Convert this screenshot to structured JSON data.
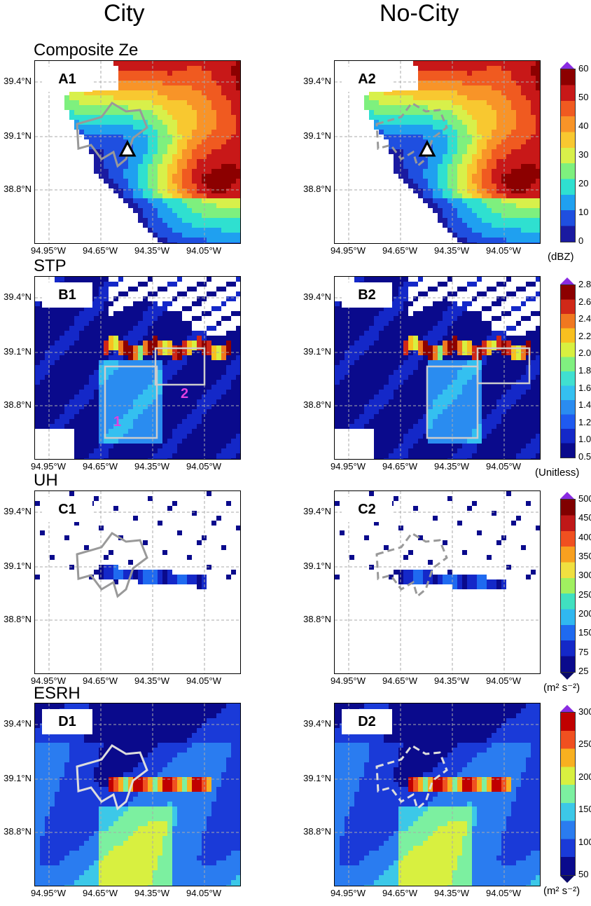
{
  "columns": {
    "left": "City",
    "right": "No-City"
  },
  "rows": [
    {
      "title": "Composite Ze",
      "tags": [
        "A1",
        "A2"
      ],
      "unit": "(dBZ)",
      "palette": "ze",
      "ticks": [
        "60",
        "50",
        "40",
        "30",
        "20",
        "10",
        "0"
      ]
    },
    {
      "title": "STP",
      "tags": [
        "B1",
        "B2"
      ],
      "unit": "(Unitless)",
      "palette": "stp",
      "ticks": [
        "2.8",
        "2.6",
        "2.4",
        "2.2",
        "2.0",
        "1.8",
        "1.6",
        "1.4",
        "1.2",
        "1.0",
        "0.5"
      ]
    },
    {
      "title": "UH",
      "tags": [
        "C1",
        "C2"
      ],
      "unit": "(m² s⁻²)",
      "palette": "uh",
      "ticks": [
        "500",
        "450",
        "400",
        "350",
        "300",
        "250",
        "200",
        "150",
        "75",
        "25"
      ]
    },
    {
      "title": "ESRH",
      "tags": [
        "D1",
        "D2"
      ],
      "unit": "(m² s⁻²)",
      "palette": "esrh",
      "ticks": [
        "300",
        "250",
        "200",
        "150",
        "100",
        "50"
      ]
    }
  ],
  "axes": {
    "y_ticks": [
      "39.4°N",
      "39.1°N",
      "38.8°N"
    ],
    "x_ticks": [
      "94.95°W",
      "94.65°W",
      "94.35°W",
      "94.05°W"
    ]
  },
  "annotations": {
    "box1": "1",
    "box2": "2"
  },
  "colors": {
    "ze": [
      "#1a1aa0",
      "#1f4fe0",
      "#1fa0f0",
      "#2fe0d0",
      "#7ef07e",
      "#d8f04a",
      "#f8c830",
      "#f89428",
      "#f05a20",
      "#c81818",
      "#8c0000"
    ],
    "stp": [
      "#0a0a8c",
      "#1428c8",
      "#1f5af0",
      "#2a8cf0",
      "#34c0f0",
      "#40e0d0",
      "#80f080",
      "#d8f040",
      "#f8c020",
      "#f07820",
      "#d02818",
      "#8c0000"
    ],
    "uh": [
      "#0a0a8c",
      "#1428c8",
      "#1f6af0",
      "#30b8f0",
      "#40e0c0",
      "#a0f060",
      "#f0e040",
      "#f8a020",
      "#f05020",
      "#c01818",
      "#800000"
    ],
    "esrh": [
      "#0a0a8c",
      "#1a3ad8",
      "#2a7cf0",
      "#3cc8e8",
      "#7cf0a0",
      "#d8f040",
      "#f8b020",
      "#f05020",
      "#c00000"
    ],
    "tip": "#8a2be2"
  },
  "chart_data": [
    {
      "type": "heatmap",
      "title": "Composite Ze",
      "panel": "A1",
      "scenario": "City",
      "units": "dBZ",
      "colorbar_range": [
        0,
        60
      ],
      "ylim_deg_n": [
        38.5,
        39.55
      ],
      "xlim_deg_w": [
        95.0,
        93.9
      ],
      "x_ticks": [
        "94.95°W",
        "94.65°W",
        "94.35°W",
        "94.05°W"
      ],
      "y_ticks": [
        "39.4°N",
        "39.1°N",
        "38.8°N"
      ],
      "markers": [
        "triangle at ~39.0°N 94.45°W"
      ]
    },
    {
      "type": "heatmap",
      "title": "Composite Ze",
      "panel": "A2",
      "scenario": "No-City",
      "units": "dBZ",
      "colorbar_range": [
        0,
        60
      ]
    },
    {
      "type": "heatmap",
      "title": "STP",
      "panel": "B1",
      "scenario": "City",
      "units": "Unitless",
      "colorbar_range": [
        0.5,
        2.8
      ],
      "annotations": [
        "1",
        "2"
      ]
    },
    {
      "type": "heatmap",
      "title": "STP",
      "panel": "B2",
      "scenario": "No-City",
      "units": "Unitless",
      "colorbar_range": [
        0.5,
        2.8
      ]
    },
    {
      "type": "heatmap",
      "title": "UH",
      "panel": "C1",
      "scenario": "City",
      "units": "m2 s-2",
      "colorbar_range": [
        25,
        500
      ]
    },
    {
      "type": "heatmap",
      "title": "UH",
      "panel": "C2",
      "scenario": "No-City",
      "units": "m2 s-2",
      "colorbar_range": [
        25,
        500
      ]
    },
    {
      "type": "heatmap",
      "title": "ESRH",
      "panel": "D1",
      "scenario": "City",
      "units": "m2 s-2",
      "colorbar_range": [
        50,
        300
      ]
    },
    {
      "type": "heatmap",
      "title": "ESRH",
      "panel": "D2",
      "scenario": "No-City",
      "units": "m2 s-2",
      "colorbar_range": [
        50,
        300
      ]
    }
  ]
}
